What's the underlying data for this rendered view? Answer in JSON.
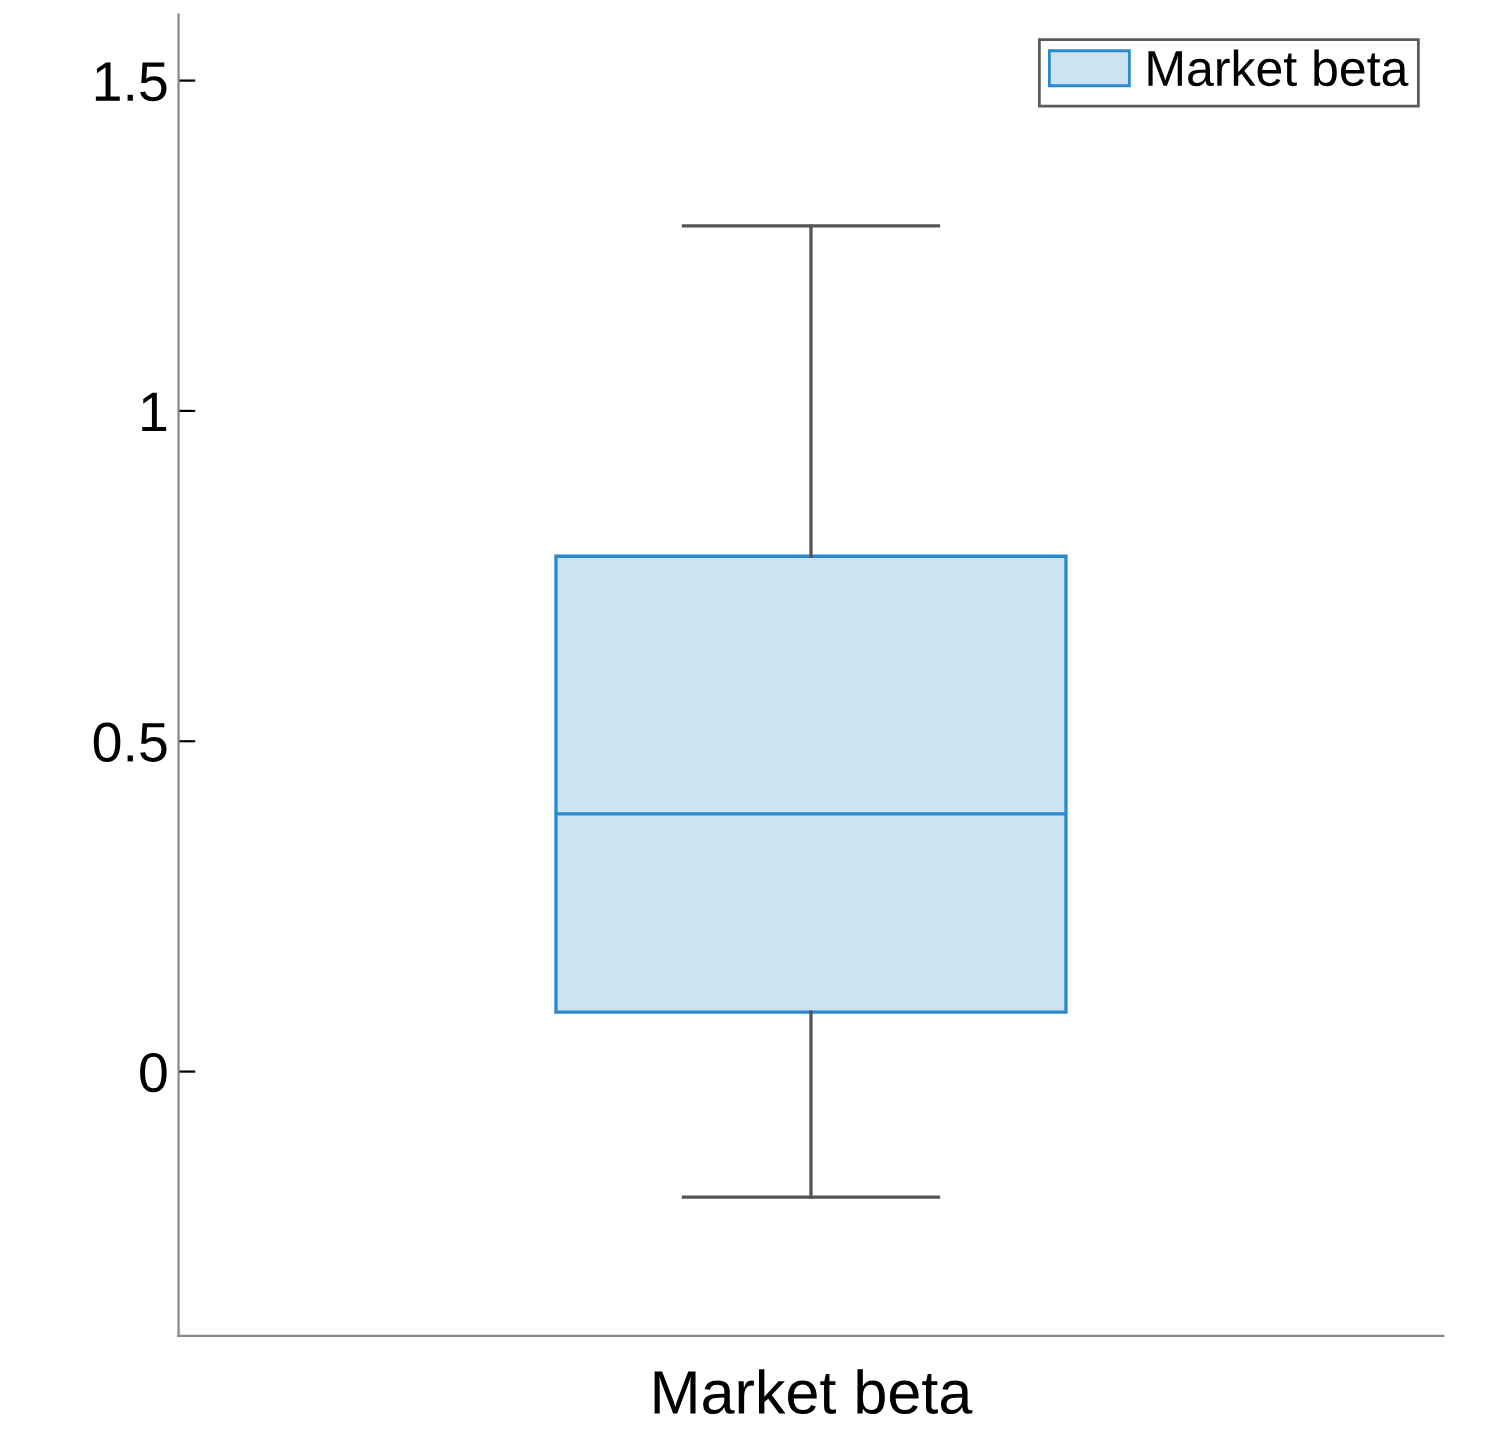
{
  "chart_data": {
    "type": "box",
    "categories": [
      "Market beta"
    ],
    "series": [
      {
        "name": "Market beta",
        "color": "#cde3f1",
        "boxes": [
          {
            "low": -0.19,
            "q1": 0.09,
            "median": 0.39,
            "q3": 0.78,
            "high": 1.28
          }
        ]
      }
    ],
    "ylim": [
      -0.4,
      1.6
    ],
    "yticks": [
      0,
      0.5,
      1,
      1.5
    ],
    "grid": false,
    "legend": "top right"
  }
}
